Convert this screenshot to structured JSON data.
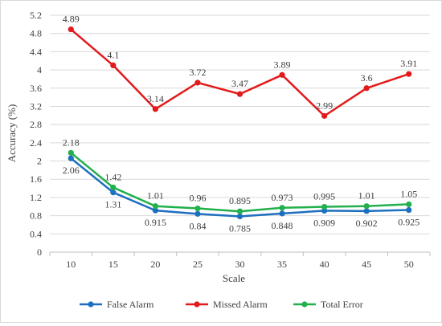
{
  "chart_data": {
    "type": "line",
    "categories": [
      "10",
      "15",
      "20",
      "25",
      "30",
      "35",
      "40",
      "45",
      "50"
    ],
    "series": [
      {
        "name": "False Alarm",
        "color": "#1f6fc0",
        "values": [
          2.06,
          1.31,
          0.915,
          0.84,
          0.785,
          0.848,
          0.909,
          0.902,
          0.925
        ],
        "labels": [
          "2.06",
          "1.31",
          "0.915",
          "0.84",
          "0.785",
          "0.848",
          "0.909",
          "0.902",
          "0.925"
        ]
      },
      {
        "name": "Missed Alarm",
        "color": "#e31a1c",
        "values": [
          4.89,
          4.1,
          3.14,
          3.72,
          3.47,
          3.89,
          2.99,
          3.6,
          3.91
        ],
        "labels": [
          "4.89",
          "4.1",
          "3.14",
          "3.72",
          "3.47",
          "3.89",
          "2.99",
          "3.6",
          "3.91"
        ]
      },
      {
        "name": "Total Error",
        "color": "#21b04b",
        "values": [
          2.18,
          1.42,
          1.01,
          0.96,
          0.895,
          0.973,
          0.995,
          1.01,
          1.05
        ],
        "labels": [
          "2.18",
          "1.42",
          "1.01",
          "0.96",
          "0.895",
          "0.973",
          "0.995",
          "1.01",
          "1.05"
        ]
      }
    ],
    "xlabel": "Scale",
    "ylabel": "Accuracy (%)",
    "ylim": [
      0,
      5.2
    ],
    "yticks": [
      "0",
      "0.4",
      "0.8",
      "1.2",
      "1.6",
      "2",
      "2.4",
      "2.8",
      "3.2",
      "3.6",
      "4",
      "4.4",
      "4.8",
      "5.2"
    ],
    "grid": true,
    "legend_position": "bottom"
  }
}
